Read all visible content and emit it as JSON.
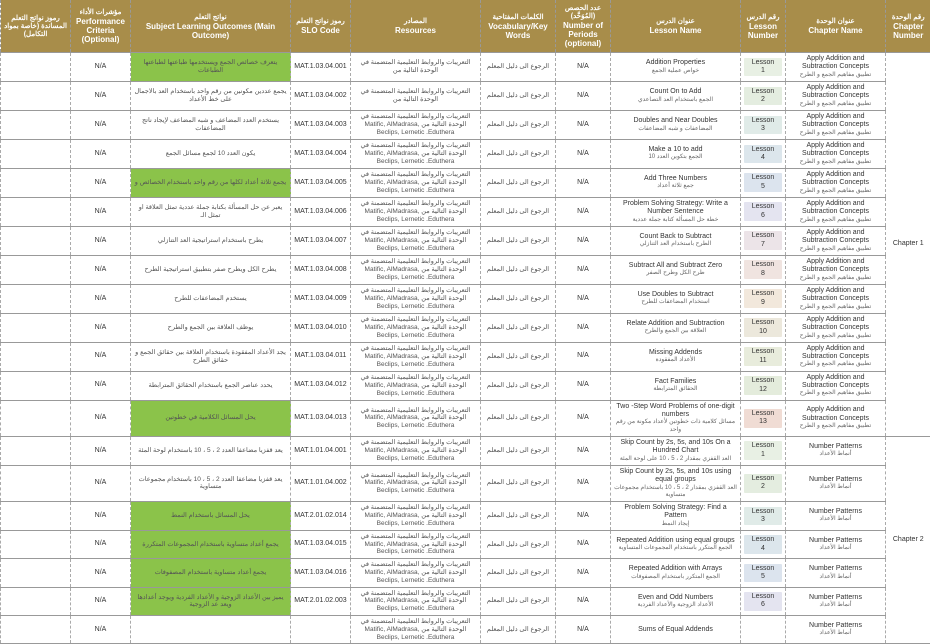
{
  "headers": {
    "perf_codes": {
      "ar": "رموز نواتج التعلم المساندة (خاصة بمواد التكامل)",
      "en": ""
    },
    "perf_crit": {
      "ar": "مؤشرات الأداء",
      "en": "Performance Criteria (Optional)"
    },
    "outcome": {
      "ar": "نواتج التعلم",
      "en": "Subject Learning Outcomes (Main Outcome)"
    },
    "slo": {
      "ar": "رموز نواتج التعلم",
      "en": "SLO Code"
    },
    "resources": {
      "ar": "المصادر",
      "en": "Resources"
    },
    "vocab": {
      "ar": "الكلمات المفتاحية",
      "en": "Vocabulary/Key Words"
    },
    "periods": {
      "ar": "عدد الحصص (المُوَحَّد)",
      "en": "Number of Periods (optional)"
    },
    "lesson_name": {
      "ar": "عنوان الدرس",
      "en": "Lesson Name"
    },
    "lesson_num": {
      "ar": "رقم الدرس",
      "en": "Lesson Number"
    },
    "chapter_name": {
      "ar": "عنوان الوحدة",
      "en": "Chapter Name"
    },
    "chapter_num": {
      "ar": "رقم الوحدة",
      "en": "Chapter Number"
    }
  },
  "lesson_colors": {
    "1": "#e8f0e4",
    "2": "#e4ede0",
    "3": "#e0ebe8",
    "4": "#dce6ec",
    "5": "#dce4ee",
    "6": "#e4e4f0",
    "7": "#ece4e8",
    "8": "#f0e4e0",
    "9": "#f2e8dc",
    "10": "#ece8dc",
    "11": "#e8ecdc",
    "12": "#e4ecdc",
    "13": "#f0dcd4"
  },
  "chapter1_name": {
    "en": "Apply Addition and Subtraction Concepts",
    "ar": "تطبيق مفاهيم الجمع و الطرح"
  },
  "chapter2_name": {
    "en": "Number Patterns",
    "ar": "أنماط الأعداد"
  },
  "chapter1_num": "Chapter 1",
  "chapter2_num": "Chapter 2",
  "na": "N/A",
  "vocab_text": "الرجوع الى دليل المعلم",
  "res_short": "التعريبات والروابط التعليمية المتضمنة في الوحدة التالية من",
  "res_long": "التعريبات والروابط التعليمية المتضمنة في الوحدة التالية من Matific, AlMadrasa, Beclips, Lernetic .Eduthera",
  "rows": [
    {
      "slo": "MAT.1.03.04.001",
      "out": "يتعرف خصائص الجمع ويستخدمها طباعتها لطباعتها الطباعات",
      "green": true,
      "ln_en": "Addition Properties",
      "ln_ar": "خواص عملية الجمع",
      "lnum": "Lesson 1",
      "ch": 1,
      "res": "short"
    },
    {
      "slo": "MAT.1.03.04.002",
      "out": "يجمع عددين مكونين من رقم واحد باستخدام العد بالاجمال على خط الأعداد",
      "green": false,
      "ln_en": "Count On to Add",
      "ln_ar": "الجمع باستخدام العد التصاعدي",
      "lnum": "Lesson 2",
      "ch": 1,
      "res": "short"
    },
    {
      "slo": "MAT.1.03.04.003",
      "out": "يستخدم العدد المضاعف و شبه المضاعف لإيجاد ناتج المضاعفات",
      "green": false,
      "ln_en": "Doubles and Near Doubles",
      "ln_ar": "المضاعفات و شبه المضاعفات",
      "lnum": "Lesson 3",
      "ch": 1,
      "res": "long"
    },
    {
      "slo": "MAT.1.03.04.004",
      "out": "يكون العدد 10 لجمع مسائل الجمع",
      "green": false,
      "ln_en": "Make a 10 to add",
      "ln_ar": "الجمع بتكوين العدد 10",
      "lnum": "Lesson 4",
      "ch": 1,
      "res": "long"
    },
    {
      "slo": "MAT.1.03.04.005",
      "out": "يجمع ثلاثة أعداد لكلها من رقم واحد باستخدام الخصائص و",
      "green": true,
      "ln_en": "Add Three Numbers",
      "ln_ar": "جمع ثلاثة أعداد",
      "lnum": "Lesson 5",
      "ch": 1,
      "res": "long"
    },
    {
      "slo": "MAT.1.03.04.006",
      "out": "يعبر عن حل المسألة بكتابة جملة عددية تمثل العلاقة او تمثل الـ",
      "green": false,
      "ln_en": "Problem Solving Strategy: Write a Number Sentence",
      "ln_ar": "خطة حل المسألة كتابة جملة عددية",
      "lnum": "Lesson 6",
      "ch": 1,
      "res": "long"
    },
    {
      "slo": "MAT.1.03.04.007",
      "out": "يطرح باستخدام استراتيجية العد التنازلي",
      "green": false,
      "ln_en": "Count Back to Subtract",
      "ln_ar": "الطرح باستخدام العد التنازلي",
      "lnum": "Lesson 7",
      "ch": 1,
      "res": "long"
    },
    {
      "slo": "MAT.1.03.04.008",
      "out": "يطرح الكل ويطرح صفر بتطبيق استراتيجية الطرح",
      "green": false,
      "ln_en": "Subtract All and Subtract Zero",
      "ln_ar": "طرح الكل وطرح الصفر",
      "lnum": "Lesson 8",
      "ch": 1,
      "res": "long"
    },
    {
      "slo": "MAT.1.03.04.009",
      "out": "يستخدم المضاعفات للطرح",
      "green": false,
      "ln_en": "Use Doubles to Subtract",
      "ln_ar": "استخدام المضاعفات للطرح",
      "lnum": "Lesson 9",
      "ch": 1,
      "res": "long"
    },
    {
      "slo": "MAT.1.03.04.010",
      "out": "يوظف العلاقة بين الجمع والطرح",
      "green": false,
      "ln_en": "Relate Addition and Subtraction",
      "ln_ar": "العلاقة بين الجمع والطرح",
      "lnum": "Lesson 10",
      "ch": 1,
      "res": "long"
    },
    {
      "slo": "MAT.1.03.04.011",
      "out": "يجد الأعداد المفقودة باستخدام العلاقة بين حقائق الجمع و حقائق الطرح",
      "green": false,
      "ln_en": "Missing Addends",
      "ln_ar": "الأعداد المفقودة",
      "lnum": "Lesson 11",
      "ch": 1,
      "res": "long"
    },
    {
      "slo": "MAT.1.03.04.012",
      "out": "يحدد عناصر الجمع باستخدام الحقائق المترابطة",
      "green": false,
      "ln_en": "Fact Families",
      "ln_ar": "الحقائق المترابطة",
      "lnum": "Lesson 12",
      "ch": 1,
      "res": "long"
    },
    {
      "slo": "MAT.1.03.04.013",
      "out": "يحل المسائل الكلامية في خطوتين",
      "green": true,
      "ln_en": "Two -Step Word Problems of one-digit numbers",
      "ln_ar": "مسائل كلامية ذات خطوتين لأعداد مكونة من رقم واحد",
      "lnum": "Lesson 13",
      "ch": 1,
      "res": "long"
    },
    {
      "slo": "MAT.1.01.04.001",
      "out": "يعد قفزيا مضاعفا العدد 2 ، 5 ، 10 باستخدام لوحة المئة",
      "green": false,
      "ln_en": "Skip Count by 2s, 5s, and 10s On a Hundred Chart",
      "ln_ar": "العد القفزي بمقدار 2 ، 5 ، 10 على لوحة المئة",
      "lnum": "Lesson 1",
      "ch": 2,
      "res": "long"
    },
    {
      "slo": "MAT.1.01.04.002",
      "out": "يعد قفزيا مضاعفا العدد 2 ، 5 ، 10 باستخدام مجموعات متساوية",
      "green": false,
      "ln_en": "Skip Count by 2s, 5s, and 10s using equal groups",
      "ln_ar": "العد القفزي بمقدار 2 ، 5 ، 10 باستخدام مجموعات متساوية",
      "lnum": "Lesson 2",
      "ch": 2,
      "res": "long"
    },
    {
      "slo": "MAT.2.01.02.014",
      "out": "يحل المسائل باستخدام النمط",
      "green": true,
      "ln_en": "Problem Solving Strategy: Find a Pattern",
      "ln_ar": "إيجاد النمط",
      "lnum": "Lesson 3",
      "ch": 2,
      "res": "long"
    },
    {
      "slo": "MAT.1.03.04.015",
      "out": "يجمع أعداد متساوية باستخدام المجموعات المتكررة",
      "green": true,
      "ln_en": "Repeated Addition using equal groups",
      "ln_ar": "الجمع المتكرر باستخدام المجموعات المتساوية",
      "lnum": "Lesson 4",
      "ch": 2,
      "res": "long"
    },
    {
      "slo": "MAT.1.03.04.016",
      "out": "يجمع أعداد متساوية باستخدام المصفوفات",
      "green": true,
      "ln_en": "Repeated Addition with Arrays",
      "ln_ar": "الجمع المتكرر باستخدام المصفوفات",
      "lnum": "Lesson 5",
      "ch": 2,
      "res": "long"
    },
    {
      "slo": "MAT.2.01.02.003",
      "out": "يميز بين الأعداد الزوجية و الأعداد الفردية ويوجد أعدادها ويعد عد الزوجية",
      "green": true,
      "ln_en": "Even and Odd Numbers",
      "ln_ar": "الأعداد الزوجية والأعداد الفردية",
      "lnum": "Lesson 6",
      "ch": 2,
      "res": "long"
    },
    {
      "slo": "",
      "out": "",
      "green": false,
      "ln_en": "Sums of Equal Addends",
      "ln_ar": "",
      "lnum": "",
      "ch": 2,
      "res": "long"
    }
  ]
}
